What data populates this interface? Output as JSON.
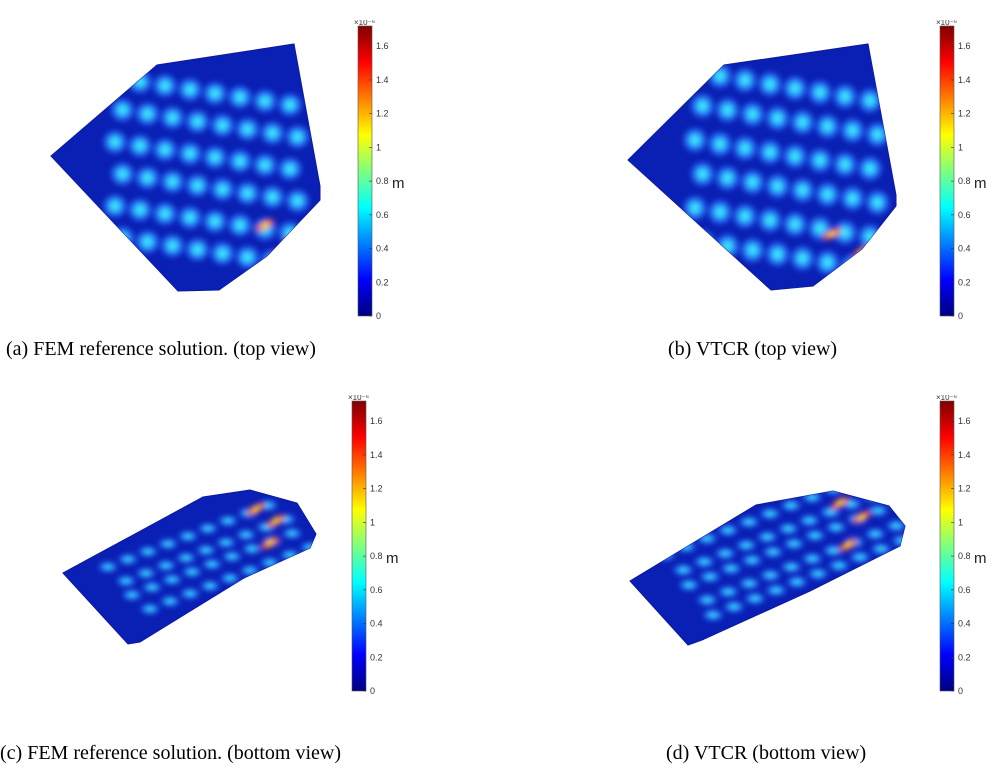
{
  "figure": {
    "panels": [
      {
        "id": "a",
        "caption": "(a) FEM reference solution. (top view)",
        "view": "top",
        "method": "FEM"
      },
      {
        "id": "b",
        "caption": "(b) VTCR (top view)",
        "view": "top",
        "method": "VTCR"
      },
      {
        "id": "c",
        "caption": "(c) FEM reference solution. (bottom view)",
        "view": "bottom",
        "method": "FEM"
      },
      {
        "id": "d",
        "caption": "(d) VTCR (bottom view)",
        "view": "bottom",
        "method": "VTCR"
      }
    ],
    "colorbar": {
      "colormap": "jet",
      "multiplier": "×10⁻⁶",
      "unit": "m",
      "ticks": [
        "0",
        "0.2",
        "0.4",
        "0.6",
        "0.8",
        "1",
        "1.2",
        "1.4",
        "1.6"
      ],
      "range": [
        0,
        1.72
      ],
      "colors": [
        "#00007f",
        "#0000ff",
        "#007fff",
        "#00ffff",
        "#7fff7f",
        "#ffff00",
        "#ff7f00",
        "#ff0000",
        "#7f0000"
      ]
    },
    "surface_colors": {
      "base": "#0a1fb4",
      "edge": "#0b1a9e",
      "mid": "#2a7fff",
      "peak": "#3df0ff",
      "hot": "#ff3b1a"
    }
  }
}
